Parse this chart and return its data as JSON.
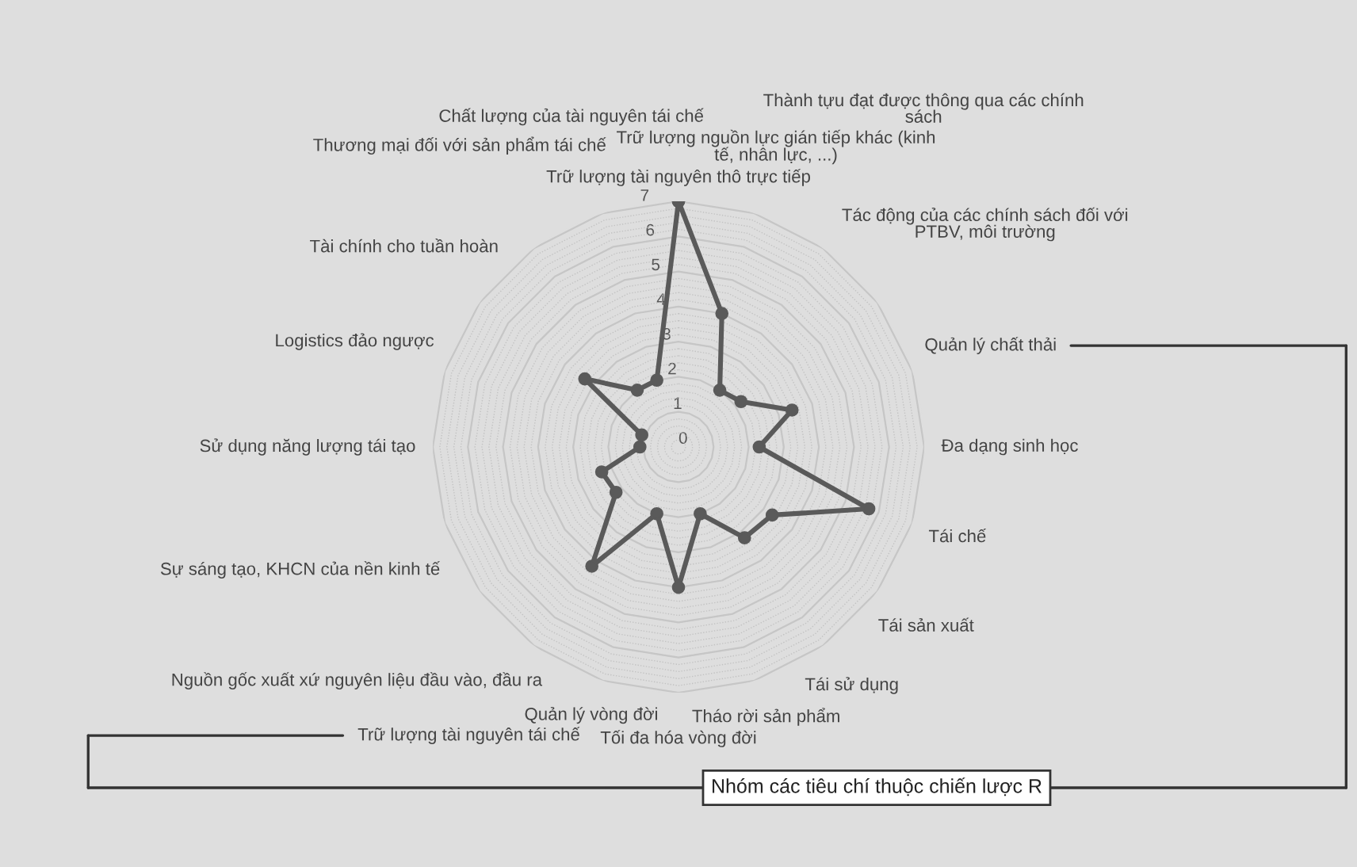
{
  "chart_data": {
    "type": "radar",
    "categories": [
      "Trữ lượng tài nguyên thô trực tiếp",
      "Trữ lượng nguồn lực gián tiếp khác (kinh\ntế, nhân lực, ...)",
      "Thành tựu đạt được thông qua các chính\nsách",
      "Tác động của các chính sách đối với\nPTBV, môi trường",
      "Quản lý chất thải",
      "Đa dạng sinh học",
      "Tái chế",
      "Tái sản xuất",
      "Tái sử dụng",
      "Tháo rời sản phẩm",
      "Tối đa hóa vòng đời",
      "Quản lý vòng đời",
      "Trữ lượng tài nguyên tái chế",
      "Nguồn gốc xuất xứ nguyên liệu đầu vào, đầu ra",
      "Sự sáng tạo, KHCN của nền kinh tế",
      "Sử dụng năng lượng tái tạo",
      "Logistics đảo ngược",
      "Tài chính cho tuần hoàn",
      "Thương mại đối với sản phẩm tái chế",
      "Chất lượng của tài nguyên tái chế"
    ],
    "series": [
      {
        "color": "#5a5a5a",
        "values": [
          7,
          4,
          2,
          2.2,
          3.4,
          2.3,
          5.7,
          3.3,
          3.2,
          2,
          4,
          2,
          4.2,
          2.2,
          2.3,
          1.1,
          1.1,
          3.3,
          2,
          2
        ]
      }
    ],
    "ylim": [
      0,
      7
    ],
    "yticks": [
      0,
      1,
      2,
      3,
      4,
      5,
      6,
      7
    ],
    "grid": true,
    "marker": "circle",
    "line_style": "solid",
    "annotations": [
      "Nhóm các tiêu chí thuộc chiến lược R"
    ]
  }
}
